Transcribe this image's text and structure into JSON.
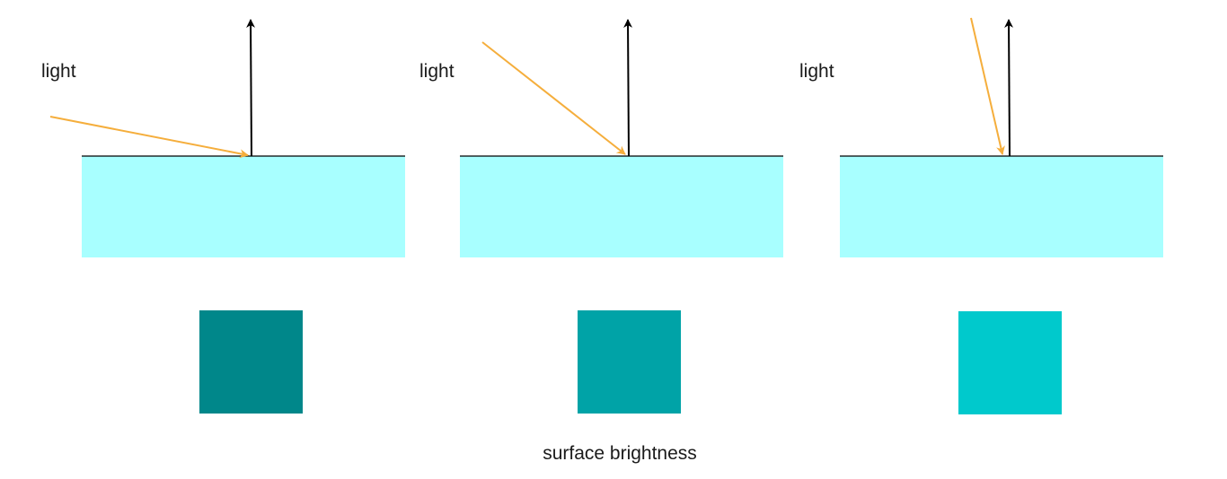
{
  "panels": [
    {
      "light_label": "light",
      "swatch_color": "#00878a"
    },
    {
      "light_label": "light",
      "swatch_color": "#00a3a7"
    },
    {
      "light_label": "light",
      "swatch_color": "#00c9cc"
    }
  ],
  "caption": "surface brightness",
  "colors": {
    "surface": "#a8ffff",
    "surface_line": "#000000",
    "normal_arrow": "#000000",
    "light_ray": "#f5ae3c"
  }
}
